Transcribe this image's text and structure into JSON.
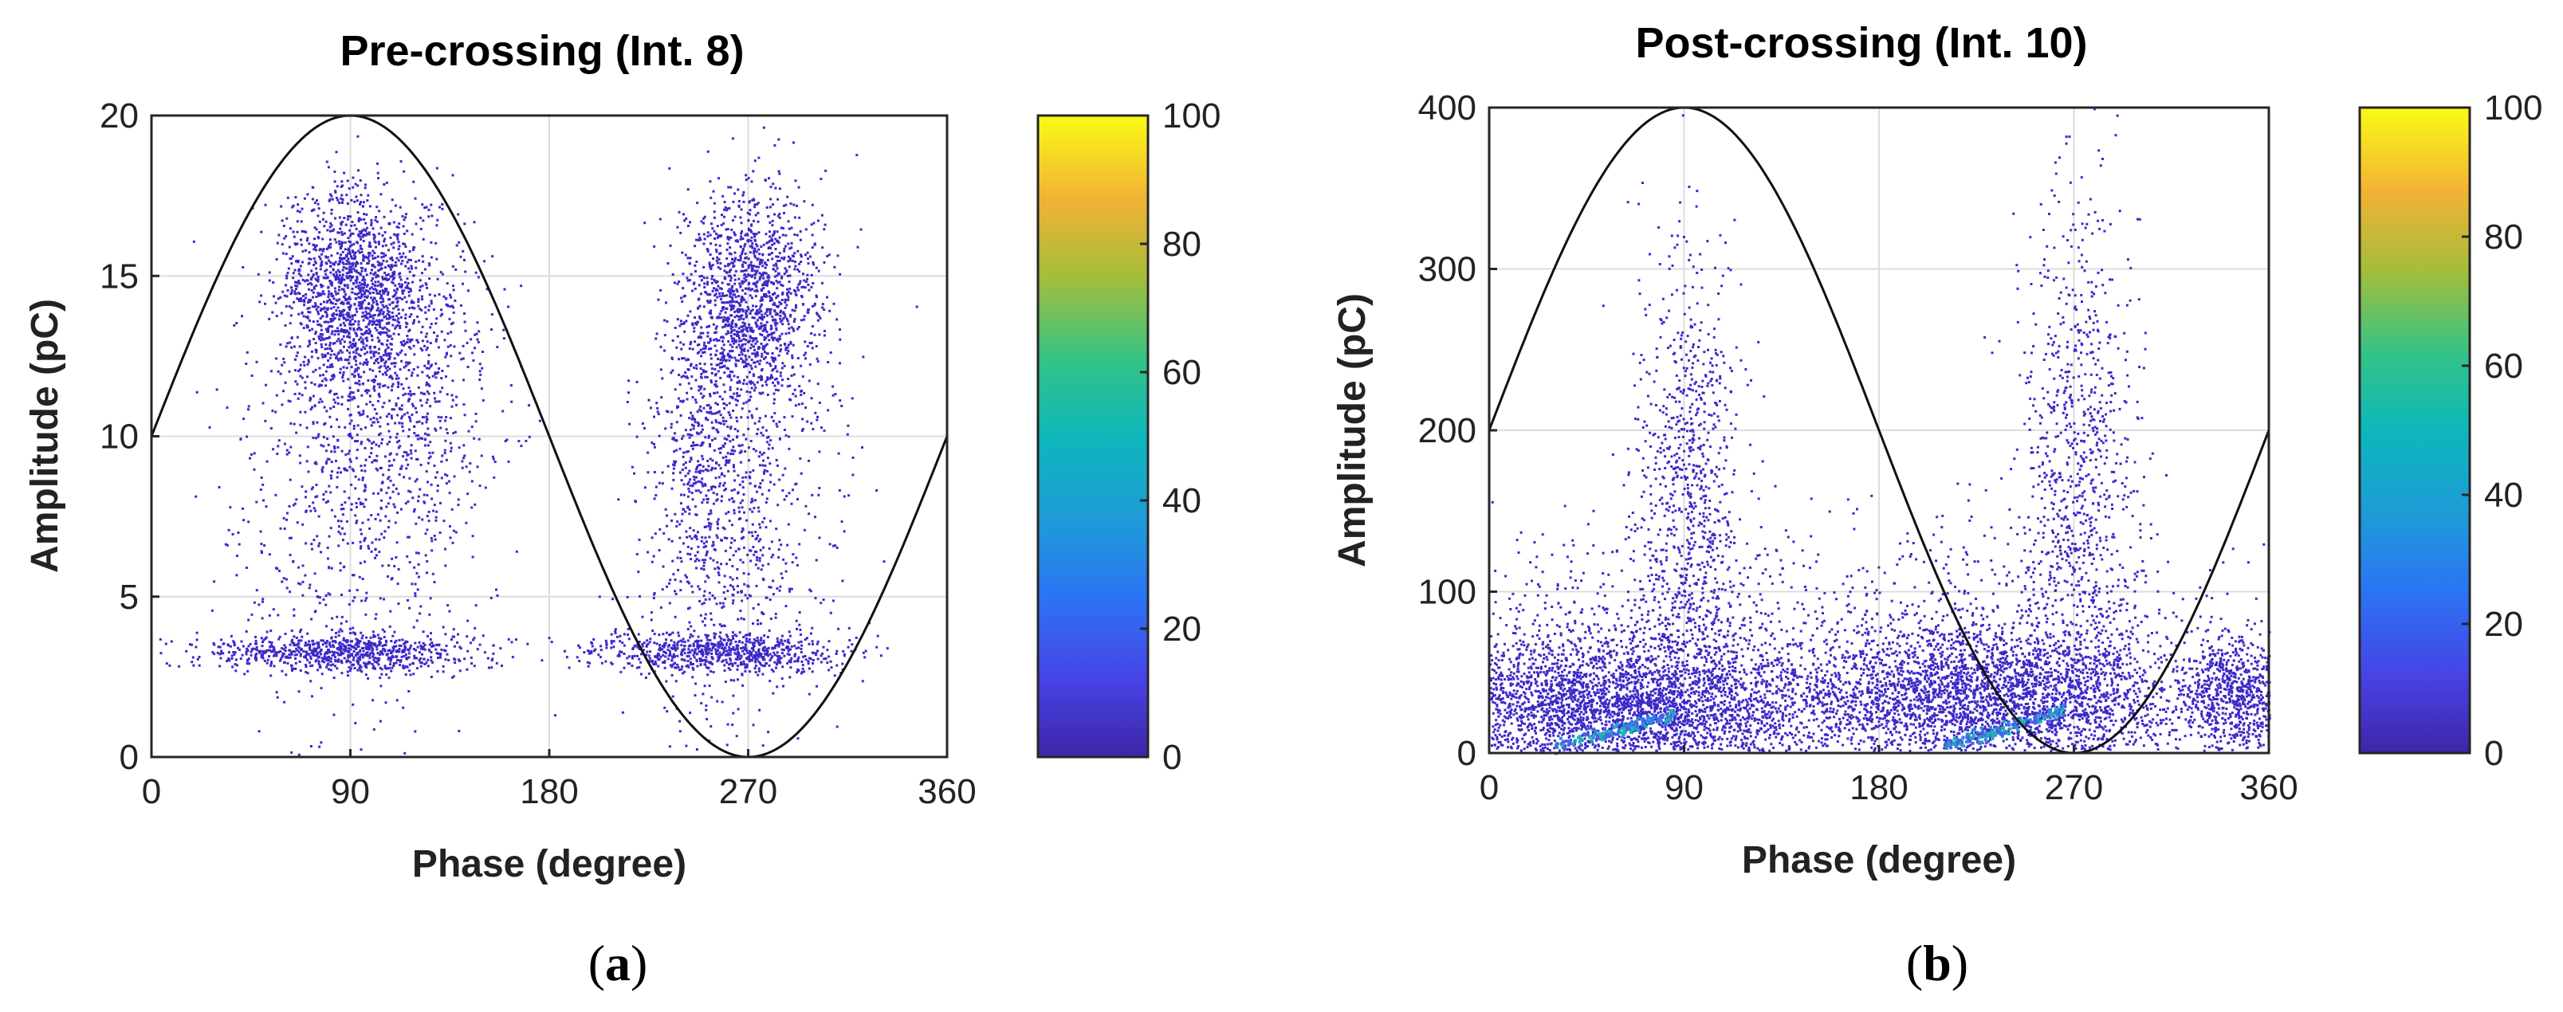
{
  "chart_data": [
    {
      "type": "scatter",
      "panel_label": "a",
      "title": "Pre-crossing (Int. 8)",
      "xlabel": "Phase (degree)",
      "ylabel": "Amplitude (pC)",
      "xlim": [
        0,
        360
      ],
      "ylim": [
        0,
        20
      ],
      "xticks": [
        0,
        90,
        180,
        270,
        360
      ],
      "yticks": [
        0,
        5,
        10,
        15,
        20
      ],
      "grid": true,
      "reference_curve": {
        "name": "sine",
        "amplitude": 10,
        "offset": 10,
        "period_deg": 360
      },
      "colorbar": {
        "min": 0,
        "max": 100,
        "ticks": [
          0,
          20,
          40,
          60,
          80,
          100
        ],
        "colormap": "parula"
      },
      "clusters": [
        {
          "x_center": 92,
          "x_spread": 18,
          "y_center": 14.5,
          "y_spread": 1.6,
          "count": 1500
        },
        {
          "x_center": 115,
          "x_spread": 22,
          "y_center": 11.5,
          "y_spread": 2.2,
          "count": 500
        },
        {
          "x_center": 90,
          "x_spread": 28,
          "y_center": 8,
          "y_spread": 3.5,
          "count": 700
        },
        {
          "x_center": 85,
          "x_spread": 30,
          "y_center": 3.3,
          "y_spread": 0.3,
          "count": 800
        },
        {
          "x_center": 272,
          "x_spread": 16,
          "y_center": 14.3,
          "y_spread": 1.8,
          "count": 1400
        },
        {
          "x_center": 250,
          "x_spread": 12,
          "y_center": 9.5,
          "y_spread": 2.5,
          "count": 500
        },
        {
          "x_center": 265,
          "x_spread": 22,
          "y_center": 6.5,
          "y_spread": 3.2,
          "count": 600
        },
        {
          "x_center": 255,
          "x_spread": 30,
          "y_center": 3.3,
          "y_spread": 0.3,
          "count": 700
        }
      ]
    },
    {
      "type": "scatter",
      "panel_label": "b",
      "title": "Post-crossing (Int. 10)",
      "xlabel": "Phase (degree)",
      "ylabel": "Amplitude (pC)",
      "xlim": [
        0,
        360
      ],
      "ylim": [
        0,
        400
      ],
      "xticks": [
        0,
        90,
        180,
        270,
        360
      ],
      "yticks": [
        0,
        100,
        200,
        300,
        400
      ],
      "grid": true,
      "reference_curve": {
        "name": "sine",
        "amplitude": 200,
        "offset": 200,
        "period_deg": 360
      },
      "colorbar": {
        "min": 0,
        "max": 100,
        "ticks": [
          0,
          20,
          40,
          60,
          80,
          100
        ],
        "colormap": "parula"
      },
      "clusters": [
        {
          "x_center": 55,
          "x_spread": 50,
          "y_center": 30,
          "y_spread": 22,
          "count": 3500
        },
        {
          "x_center": 225,
          "x_spread": 55,
          "y_center": 35,
          "y_spread": 22,
          "count": 3500
        },
        {
          "x_center": 345,
          "x_spread": 12,
          "y_center": 35,
          "y_spread": 20,
          "count": 700
        },
        {
          "x_center": 92,
          "x_spread": 12,
          "y_center": 160,
          "y_spread": 80,
          "count": 900
        },
        {
          "x_center": 272,
          "x_spread": 14,
          "y_center": 170,
          "y_spread": 90,
          "count": 900
        },
        {
          "x_center": 60,
          "x_spread": 55,
          "y_center": 90,
          "y_spread": 30,
          "count": 400
        },
        {
          "x_center": 230,
          "x_spread": 55,
          "y_center": 90,
          "y_spread": 30,
          "count": 400
        }
      ],
      "dense_streaks": [
        {
          "x_start": 30,
          "x_end": 85,
          "y_start": 5,
          "y_end": 25
        },
        {
          "x_start": 210,
          "x_end": 265,
          "y_start": 5,
          "y_end": 27
        }
      ]
    }
  ],
  "captions": [
    {
      "open": "(",
      "letter": "a",
      "close": ")"
    },
    {
      "open": "(",
      "letter": "b",
      "close": ")"
    }
  ]
}
